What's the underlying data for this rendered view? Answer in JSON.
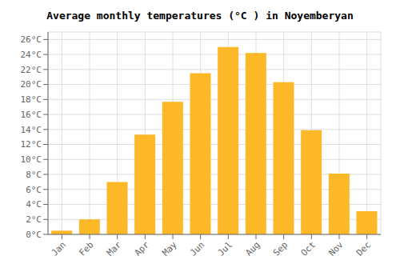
{
  "chart_data": {
    "type": "bar",
    "title": "Average monthly temperatures (°C ) in Noyemberyan",
    "categories": [
      "Jan",
      "Feb",
      "Mar",
      "Apr",
      "May",
      "Jun",
      "Jul",
      "Aug",
      "Sep",
      "Oct",
      "Nov",
      "Dec"
    ],
    "values": [
      0.5,
      2.0,
      7.0,
      13.3,
      17.7,
      21.5,
      25.0,
      24.2,
      20.3,
      13.9,
      8.1,
      3.1
    ],
    "color": "#FDB827",
    "ylim": [
      0,
      27
    ],
    "yticks": [
      {
        "value": 0,
        "label": "0°C"
      },
      {
        "value": 2,
        "label": "2°C"
      },
      {
        "value": 4,
        "label": "4°C"
      },
      {
        "value": 6,
        "label": "6°C"
      },
      {
        "value": 8,
        "label": "8°C"
      },
      {
        "value": 10,
        "label": "10°C"
      },
      {
        "value": 12,
        "label": "12°C"
      },
      {
        "value": 14,
        "label": "14°C"
      },
      {
        "value": 16,
        "label": "16°C"
      },
      {
        "value": 18,
        "label": "18°C"
      },
      {
        "value": 20,
        "label": "20°C"
      },
      {
        "value": 22,
        "label": "22°C"
      },
      {
        "value": 24,
        "label": "24°C"
      },
      {
        "value": 26,
        "label": "26°C"
      }
    ],
    "grid": true
  }
}
